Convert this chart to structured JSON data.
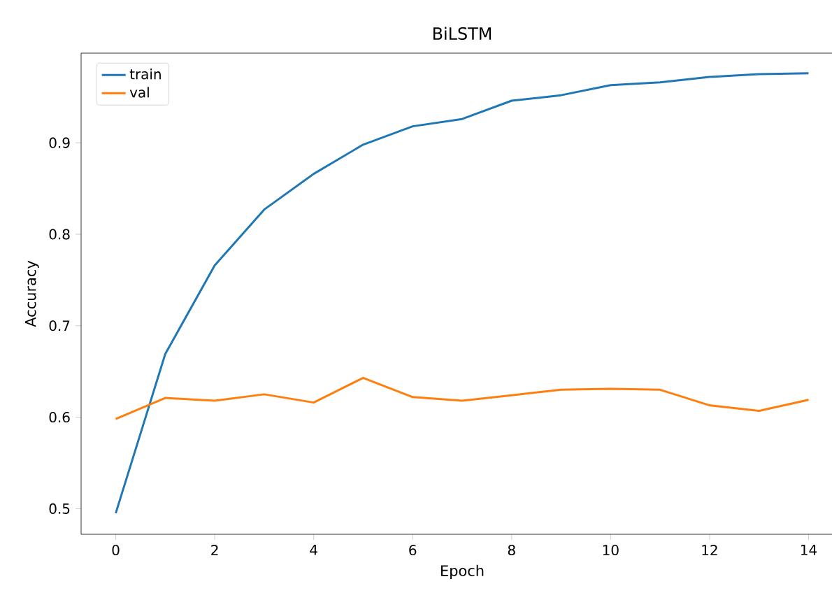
{
  "chart_data": {
    "type": "line",
    "title": "BiLSTM",
    "xlabel": "Epoch",
    "ylabel": "Accuracy",
    "x": [
      0,
      1,
      2,
      3,
      4,
      5,
      6,
      7,
      8,
      9,
      10,
      11,
      12,
      13,
      14
    ],
    "series": [
      {
        "name": "train",
        "color": "#1f77b4",
        "values": [
          0.495,
          0.669,
          0.766,
          0.827,
          0.866,
          0.898,
          0.918,
          0.926,
          0.946,
          0.952,
          0.963,
          0.966,
          0.972,
          0.975,
          0.976
        ]
      },
      {
        "name": "val",
        "color": "#ff7f0e",
        "values": [
          0.598,
          0.621,
          0.618,
          0.625,
          0.616,
          0.643,
          0.622,
          0.618,
          0.624,
          0.63,
          0.631,
          0.63,
          0.613,
          0.607,
          0.619
        ]
      }
    ],
    "xlim": [
      -0.7,
      14.7
    ],
    "ylim": [
      0.472,
      0.998
    ],
    "xticks": [
      0,
      2,
      4,
      6,
      8,
      10,
      12,
      14
    ],
    "yticks": [
      0.5,
      0.6,
      0.7,
      0.8,
      0.9
    ],
    "legend": "top left"
  }
}
